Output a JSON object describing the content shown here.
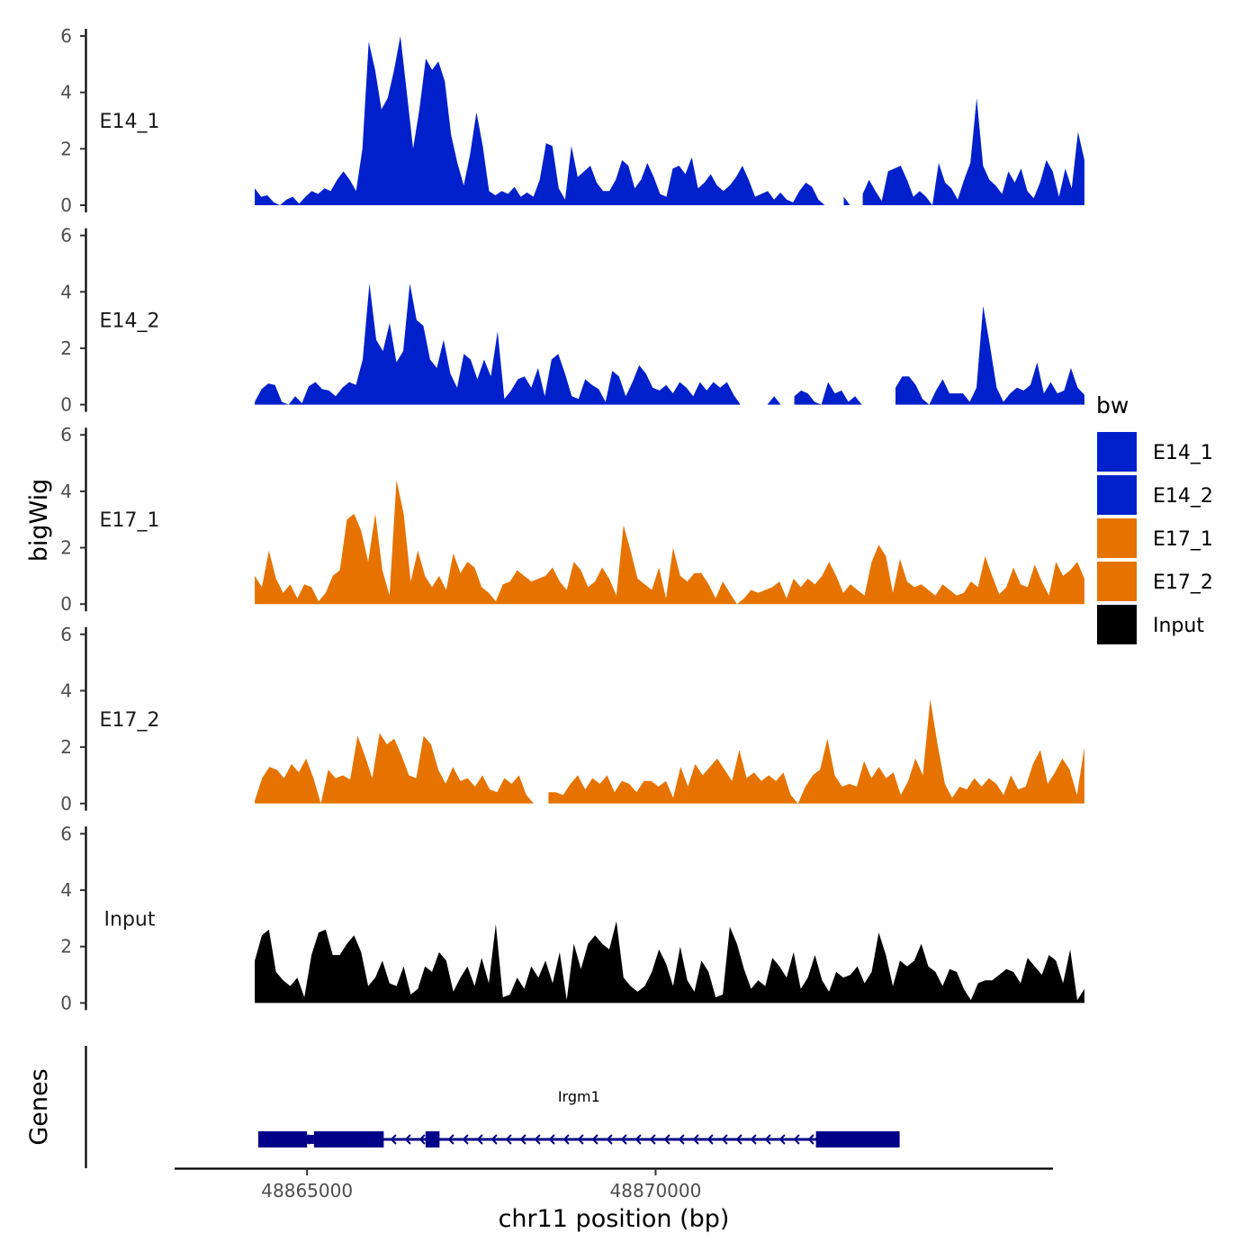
{
  "chart_data": {
    "type": "area",
    "chromosome": "chr11",
    "xlabel": "chr11 position (bp)",
    "ylabel": "bigWig",
    "genes_label": "Genes",
    "xlim": [
      48863100,
      48875700
    ],
    "track_xrange": [
      48864250,
      48876150
    ],
    "ylim": [
      0,
      6
    ],
    "yticks": [
      0,
      2,
      4,
      6
    ],
    "xticks": [
      48865000,
      48870000
    ],
    "xtick_labels": [
      "48865000",
      "48870000"
    ],
    "legend": {
      "title": "bw",
      "entries": [
        {
          "label": "E14_1",
          "color": "#0020CC"
        },
        {
          "label": "E14_2",
          "color": "#0020CC"
        },
        {
          "label": "E17_1",
          "color": "#E67300"
        },
        {
          "label": "E17_2",
          "color": "#E67300"
        },
        {
          "label": "Input",
          "color": "#000000"
        }
      ]
    },
    "series": [
      {
        "name": "E14_1",
        "color": "#0020CC",
        "values": [
          0.6,
          0.3,
          0.35,
          0.1,
          0,
          0.2,
          0.3,
          0.05,
          0.3,
          0.5,
          0.4,
          0.6,
          0.5,
          0.9,
          1.2,
          0.9,
          0.5,
          2,
          5.8,
          4.8,
          3.4,
          3.8,
          4.8,
          6,
          4,
          2,
          3.4,
          5.2,
          4.8,
          5.1,
          4.4,
          2.5,
          1.5,
          0.7,
          1.8,
          3.3,
          2.1,
          0.5,
          0.35,
          0.5,
          0.4,
          0.65,
          0.3,
          0.45,
          0.3,
          0.9,
          2.2,
          2.1,
          0.6,
          0.2,
          2.1,
          1,
          1.2,
          1.4,
          0.8,
          0.5,
          0.5,
          0.9,
          1.6,
          1.4,
          0.6,
          0.9,
          1.5,
          1,
          0.4,
          0.3,
          1.3,
          1.4,
          1.1,
          1.7,
          0.6,
          0.8,
          1.1,
          0.7,
          0.5,
          0.7,
          1,
          1.4,
          0.9,
          0.3,
          0.4,
          0.5,
          0.2,
          0.45,
          0.2,
          0.1,
          0.5,
          0.8,
          0.65,
          0.2,
          0,
          null,
          null,
          0.3,
          0,
          null,
          0.4,
          0.9,
          0.5,
          0.15,
          1.2,
          1.3,
          1.4,
          0.9,
          0.3,
          0.5,
          0.3,
          0,
          1.5,
          0.8,
          0.6,
          0.2,
          0.9,
          1.5,
          3.8,
          1.4,
          0.9,
          0.7,
          0.4,
          1.2,
          0.8,
          1.3,
          0.5,
          0.25,
          0.8,
          1.6,
          1.2,
          0.3,
          1.3,
          0.6,
          2.6,
          1.6
        ]
      },
      {
        "name": "E14_2",
        "color": "#0020CC",
        "values": [
          0.1,
          0.55,
          0.75,
          0.7,
          0.1,
          0,
          0.3,
          0.05,
          0.65,
          0.8,
          0.55,
          0.5,
          0.3,
          0.6,
          0.8,
          0.7,
          1.6,
          4.3,
          2.3,
          1.9,
          2.9,
          1.5,
          1.9,
          4.3,
          3,
          2.8,
          1.6,
          1.3,
          2.3,
          1.1,
          0.6,
          1.8,
          1.6,
          0.9,
          1.6,
          1,
          2.6,
          0.2,
          0.5,
          0.9,
          1,
          0.6,
          1.3,
          0.3,
          1.6,
          1.8,
          1.1,
          0.3,
          0.2,
          0.9,
          0.7,
          0.55,
          0.1,
          1.2,
          1,
          0.3,
          0.8,
          1.4,
          1.1,
          0.6,
          0.5,
          0.7,
          0.4,
          0.8,
          0.6,
          0.3,
          0.8,
          0.5,
          0.8,
          0.6,
          0.8,
          0.35,
          0,
          null,
          null,
          null,
          0,
          0.3,
          0,
          null,
          0.3,
          0.5,
          0.4,
          0.1,
          0,
          0.8,
          0.4,
          0.5,
          0.1,
          0.3,
          0,
          null,
          null,
          null,
          null,
          0.6,
          1,
          1,
          0.7,
          0.2,
          0,
          0.5,
          0.9,
          0.4,
          0.4,
          0.4,
          0.1,
          0.6,
          3.5,
          2.1,
          0.6,
          0.1,
          0.4,
          0.6,
          0.5,
          0.7,
          1.5,
          0.4,
          0.8,
          0.4,
          0.5,
          1.3,
          0.6,
          0.35
        ]
      },
      {
        "name": "E17_1",
        "color": "#E67300",
        "values": [
          1,
          0.6,
          1.9,
          0.9,
          0.4,
          0.7,
          0.2,
          0.7,
          0.6,
          0.1,
          0.4,
          1,
          1.2,
          3,
          3.2,
          2.6,
          1.5,
          3.2,
          1.2,
          0.3,
          4.4,
          3.2,
          0.8,
          1.9,
          1,
          0.6,
          1,
          0.5,
          1.8,
          1.1,
          1.5,
          1.3,
          0.6,
          0.4,
          0.1,
          0.7,
          0.8,
          1.2,
          1,
          0.8,
          0.9,
          1,
          1.3,
          0.8,
          0.5,
          1.5,
          1.2,
          0.6,
          0.8,
          1.3,
          0.9,
          0.3,
          2.8,
          1.9,
          0.9,
          0.7,
          0.5,
          1.3,
          0.2,
          2,
          1,
          0.8,
          1.1,
          1.1,
          0.7,
          0.2,
          0.8,
          0.4,
          0,
          0.2,
          0.5,
          0.4,
          0.5,
          0.6,
          0.8,
          0.2,
          0.9,
          0.6,
          0.9,
          0.7,
          1,
          1.5,
          1,
          0.4,
          0.7,
          0.5,
          0.3,
          1.5,
          2.1,
          1.7,
          0.4,
          1.6,
          0.8,
          0.6,
          0.7,
          0.5,
          0.3,
          0.7,
          0.5,
          0.3,
          0.4,
          0.8,
          0.6,
          1.7,
          1,
          0.35,
          0.6,
          1.3,
          0.7,
          0.6,
          1.4,
          0.8,
          0.3,
          1.5,
          1,
          1.2,
          1.5,
          0.9
        ]
      },
      {
        "name": "E17_2",
        "color": "#E67300",
        "values": [
          0.1,
          0.9,
          1.3,
          1.2,
          0.9,
          1.4,
          1.1,
          1.6,
          0.9,
          0,
          1.2,
          0.9,
          1,
          0.85,
          2.4,
          1.7,
          0.9,
          2.5,
          2.1,
          2.3,
          1.7,
          1,
          0.9,
          2.4,
          2.1,
          1.2,
          0.7,
          1.3,
          0.8,
          0.9,
          0.6,
          1,
          0.5,
          0.4,
          0.9,
          0.7,
          1,
          0.3,
          0,
          null,
          0.4,
          0.4,
          0.3,
          0.7,
          1,
          0.5,
          0.9,
          0.7,
          1,
          0.4,
          0.8,
          0.7,
          0.4,
          0.8,
          0.8,
          0.6,
          0.8,
          0.2,
          1.3,
          0.6,
          1.4,
          1,
          1.3,
          1.6,
          1.2,
          0.8,
          1.9,
          0.9,
          1.1,
          0.8,
          1,
          0.8,
          1.1,
          0.3,
          0,
          0.6,
          1,
          1.2,
          2.3,
          1,
          0.6,
          0.7,
          0.6,
          1.5,
          0.9,
          1.3,
          0.9,
          1.1,
          0.3,
          0.8,
          1.6,
          1,
          3.7,
          2.1,
          0.7,
          0.2,
          0.6,
          0.5,
          0.9,
          0.6,
          0.9,
          0.7,
          0.3,
          1,
          0.5,
          0.6,
          1.4,
          1.9,
          0.7,
          1.1,
          1.6,
          1.2,
          0.3,
          2
        ]
      },
      {
        "name": "Input",
        "color": "#000000",
        "values": [
          1.5,
          2.4,
          2.6,
          1.1,
          0.8,
          0.6,
          0.9,
          0.2,
          1.7,
          2.5,
          2.6,
          1.7,
          1.7,
          2.1,
          2.4,
          1.8,
          0.6,
          0.9,
          1.5,
          0.7,
          0.6,
          1.3,
          0.3,
          0.5,
          1.3,
          1.1,
          1.8,
          1.5,
          0.4,
          0.9,
          1.3,
          0.6,
          1.6,
          0.7,
          2.8,
          0.2,
          0.3,
          0.9,
          0.5,
          1.3,
          0.9,
          1.5,
          0.7,
          1.8,
          0.1,
          2.1,
          1.2,
          2.1,
          2.4,
          2.1,
          1.9,
          2.9,
          0.9,
          0.6,
          0.4,
          0.6,
          1.1,
          1.9,
          1.4,
          0.6,
          2,
          0.8,
          0.4,
          1.5,
          1.1,
          0.2,
          0.3,
          2.7,
          2.1,
          1.2,
          0.5,
          0.8,
          0.6,
          1.6,
          1.3,
          0.9,
          1.8,
          0.5,
          0.9,
          1.7,
          0.8,
          0.4,
          1.1,
          0.9,
          1,
          1.3,
          0.7,
          1.1,
          2.5,
          1.7,
          0.6,
          1.5,
          1.3,
          1.5,
          2.1,
          1.3,
          1.1,
          0.6,
          1.2,
          1.1,
          0.5,
          0.1,
          0.7,
          0.8,
          0.8,
          1,
          1.2,
          1.1,
          0.7,
          1.6,
          1.3,
          1,
          1.7,
          1.5,
          0.7,
          1.9,
          0.1,
          0.5
        ]
      }
    ],
    "gene": {
      "name": "Irgm1",
      "strand": "-",
      "start": 48864300,
      "end": 48873500,
      "thick_exons": [
        [
          48864300,
          48865000
        ],
        [
          48865100,
          48866100
        ],
        [
          48866700,
          48866900
        ],
        [
          48872300,
          48873500
        ]
      ],
      "utr_exons": [
        [
          48865000,
          48865100
        ]
      ]
    }
  }
}
